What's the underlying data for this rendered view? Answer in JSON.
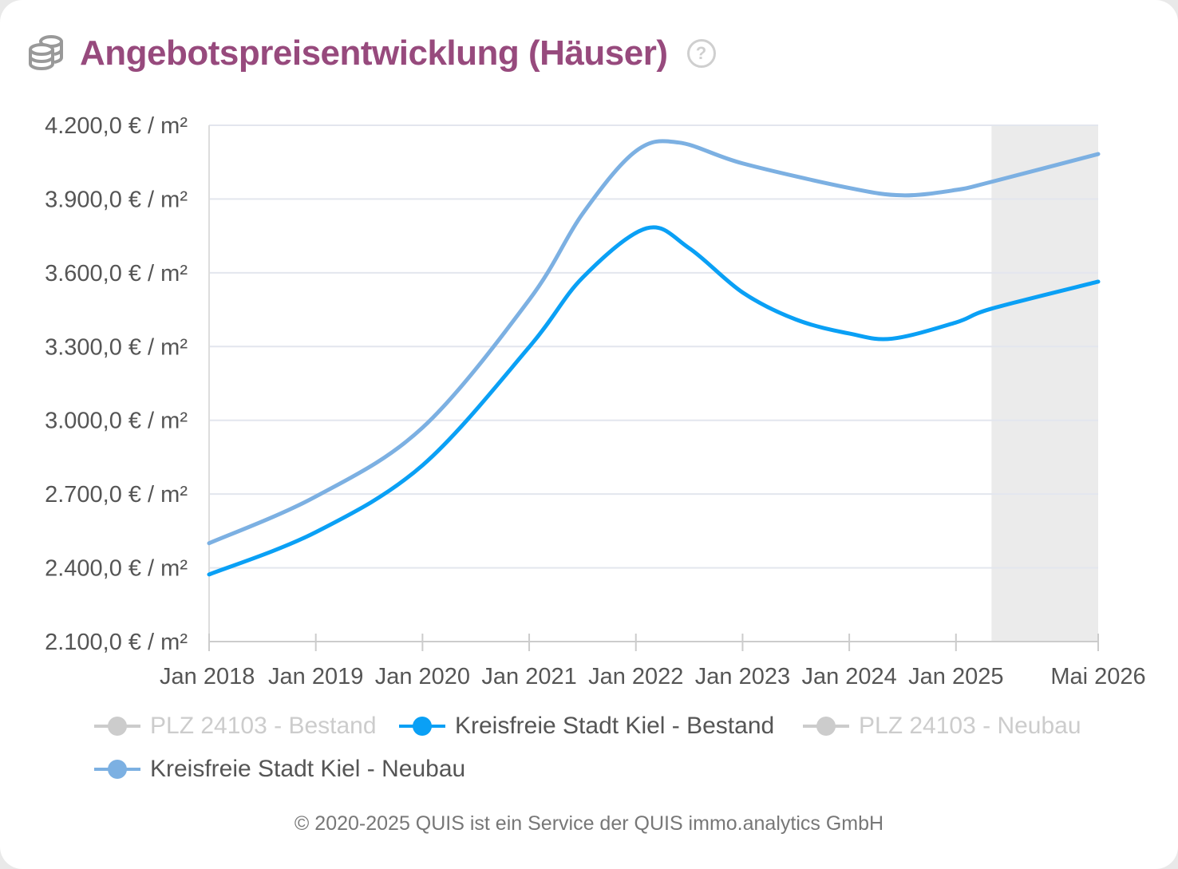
{
  "header": {
    "title": "Angebotspreisentwicklung (Häuser)",
    "icon": "coins-icon",
    "help_icon": "?"
  },
  "chart_data": {
    "type": "line",
    "title": "Angebotspreisentwicklung (Häuser)",
    "xlabel": "",
    "ylabel": "€ / m²",
    "ylim": [
      2100,
      4200
    ],
    "xlim": [
      2018,
      2026.333
    ],
    "y_ticks": [
      2100,
      2400,
      2700,
      3000,
      3300,
      3600,
      3900,
      4200
    ],
    "y_tick_labels": [
      "2.100,0 € / m²",
      "2.400,0 € / m²",
      "2.700,0 € / m²",
      "3.000,0 € / m²",
      "3.300,0 € / m²",
      "3.600,0 € / m²",
      "3.900,0 € / m²",
      "4.200,0 € / m²"
    ],
    "x_ticks": [
      2018,
      2019,
      2020,
      2021,
      2022,
      2023,
      2024,
      2025,
      2026.333
    ],
    "x_tick_labels": [
      "Jan 2018",
      "Jan 2019",
      "Jan 2020",
      "Jan 2021",
      "Jan 2022",
      "Jan 2023",
      "Jan 2024",
      "Jan 2025",
      "Mai 2026"
    ],
    "forecast_range": [
      2025.333,
      2026.333
    ],
    "grid": true,
    "legend_placement": "bottom",
    "series": [
      {
        "name": "PLZ 24103 - Bestand",
        "color": "#cccccc",
        "visible": false,
        "points": []
      },
      {
        "name": "Kreisfreie Stadt Kiel - Bestand",
        "color": "#0aa0f5",
        "visible": true,
        "points": [
          [
            2018,
            2373
          ],
          [
            2019,
            2545
          ],
          [
            2020,
            2817
          ],
          [
            2021,
            3298
          ],
          [
            2021.5,
            3580
          ],
          [
            2022.1,
            3781
          ],
          [
            2022.5,
            3700
          ],
          [
            2023,
            3520
          ],
          [
            2023.5,
            3410
          ],
          [
            2024,
            3353
          ],
          [
            2024.4,
            3332
          ],
          [
            2025,
            3398
          ],
          [
            2025.333,
            3454
          ],
          [
            2026.333,
            3564
          ]
        ]
      },
      {
        "name": "PLZ 24103 - Neubau",
        "color": "#cccccc",
        "visible": false,
        "points": []
      },
      {
        "name": "Kreisfreie Stadt Kiel - Neubau",
        "color": "#7cb0e2",
        "visible": true,
        "points": [
          [
            2018,
            2500
          ],
          [
            2019,
            2690
          ],
          [
            2020,
            2970
          ],
          [
            2021,
            3490
          ],
          [
            2021.5,
            3840
          ],
          [
            2022,
            4095
          ],
          [
            2022.4,
            4130
          ],
          [
            2023,
            4045
          ],
          [
            2024,
            3945
          ],
          [
            2024.5,
            3915
          ],
          [
            2025,
            3937
          ],
          [
            2025.333,
            3970
          ],
          [
            2026.333,
            4083
          ]
        ]
      }
    ]
  },
  "footer": {
    "text": "© 2020-2025 QUIS ist ein Service der QUIS immo.analytics GmbH"
  }
}
